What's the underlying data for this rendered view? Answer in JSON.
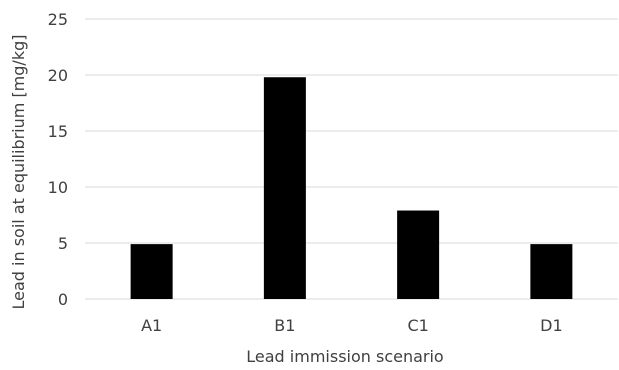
{
  "chart_data": {
    "type": "bar",
    "categories": [
      "A1",
      "B1",
      "C1",
      "D1"
    ],
    "values": [
      4.9,
      19.8,
      7.9,
      4.9
    ],
    "title": "",
    "xlabel": "Lead immission scenario",
    "ylabel": "Lead in soil at equilibrium [mg/kg]",
    "ylim": [
      0,
      25
    ],
    "yticks": [
      0,
      5,
      10,
      15,
      20,
      25
    ],
    "grid": true,
    "legend": "none",
    "bar_color": "#000000",
    "grid_color": "#d9d9d9",
    "text_color": "#404040"
  }
}
